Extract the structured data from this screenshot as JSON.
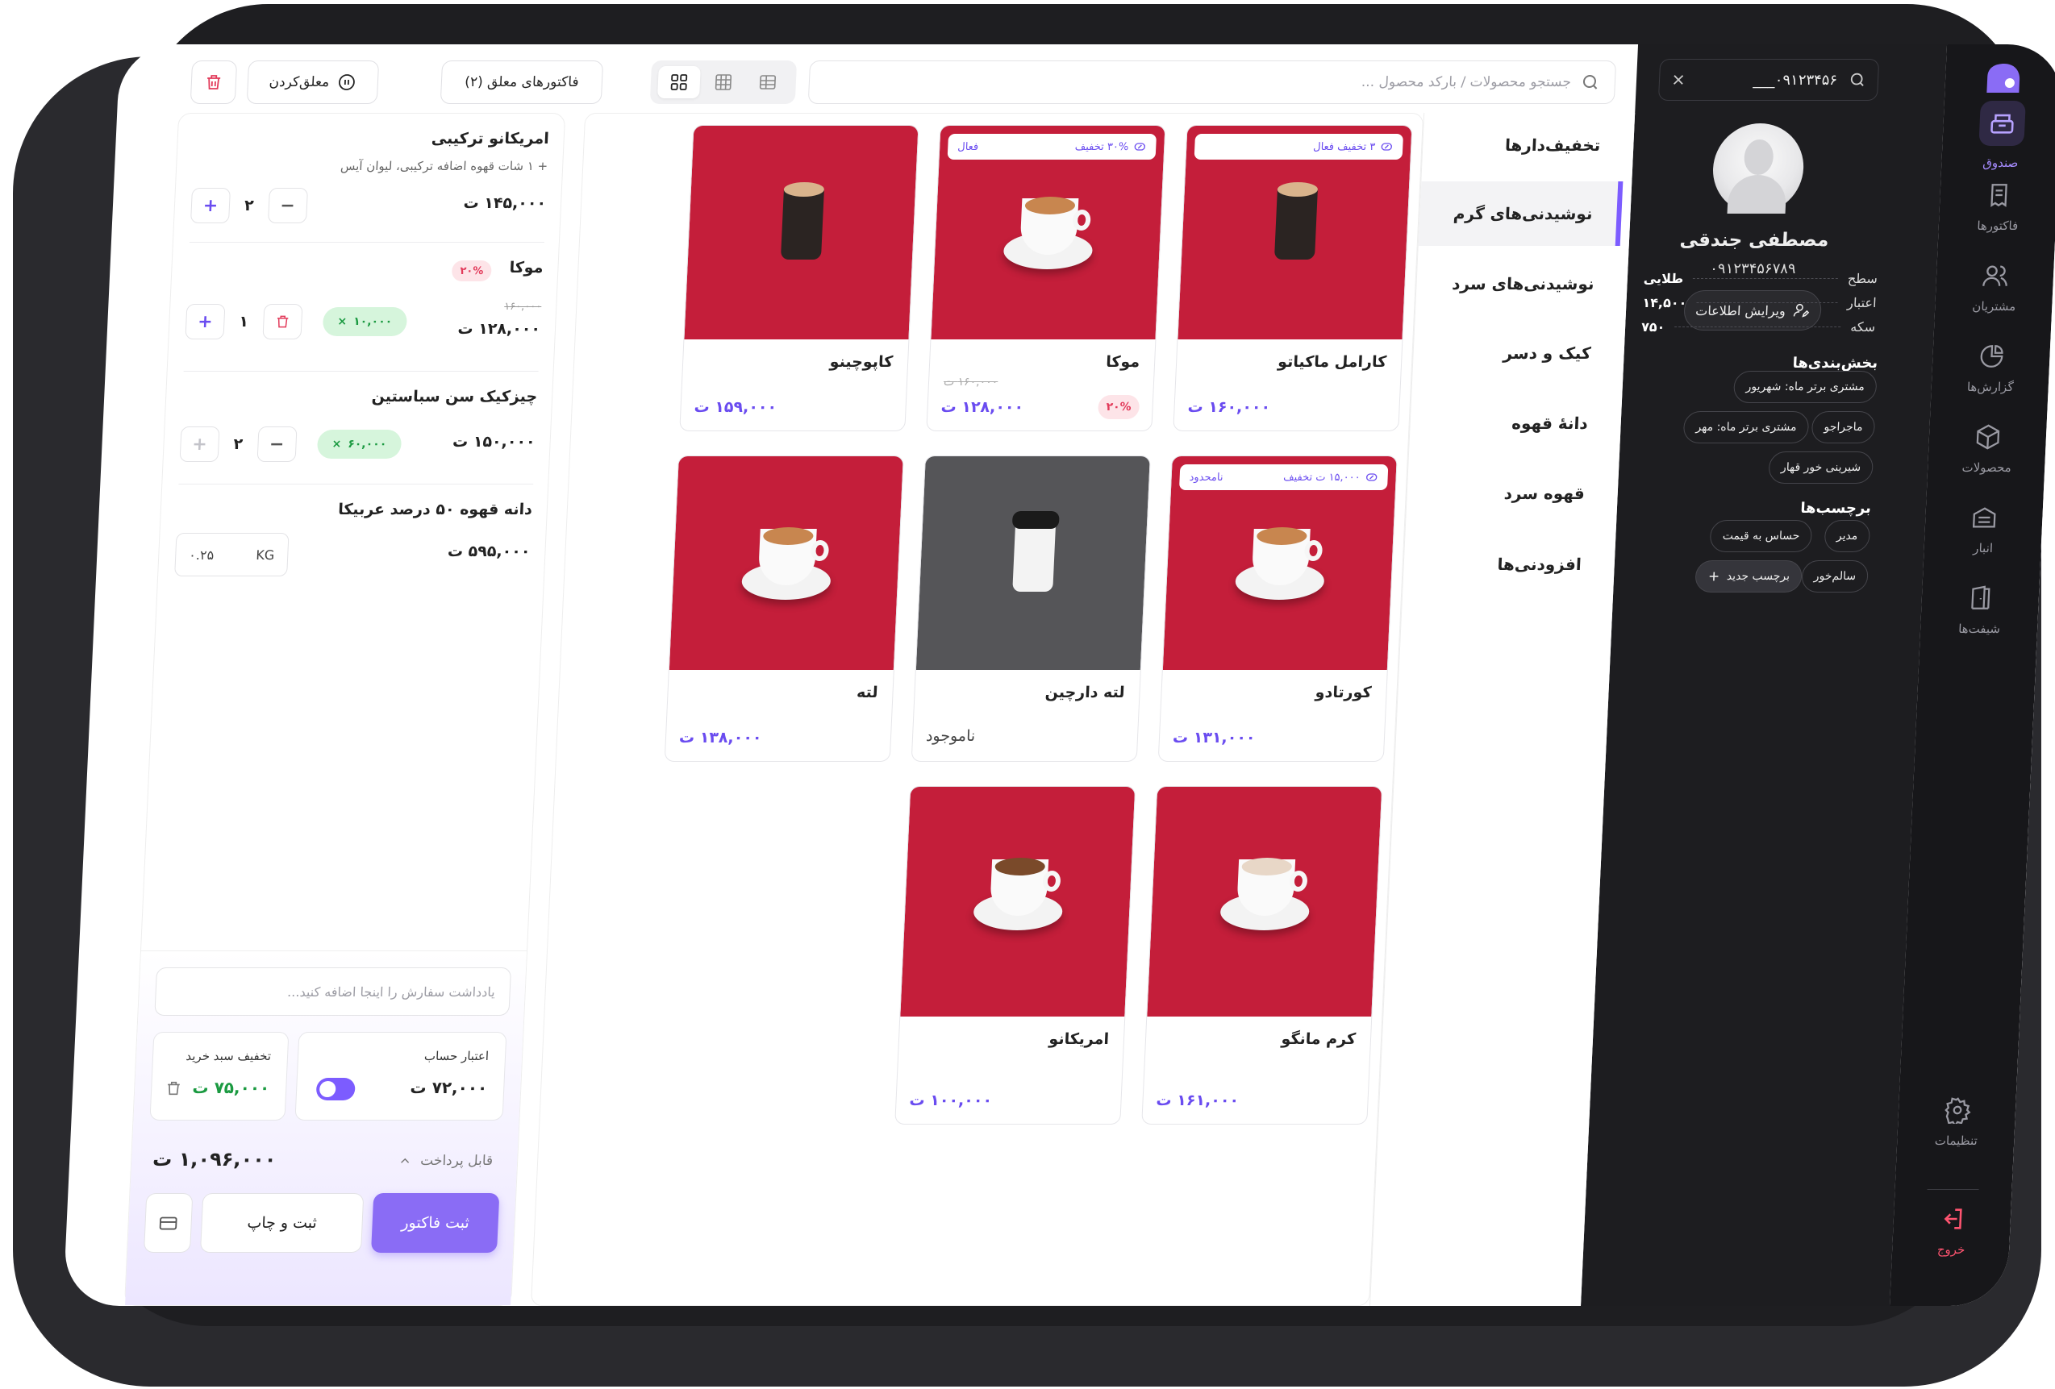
{
  "nav": {
    "cashier": "صندوق",
    "invoices": "فاکتورها",
    "customers": "مشتریان",
    "reports": "گزارش‌ها",
    "products": "محصولات",
    "warehouse": "انبار",
    "shifts": "شیفت‌ها",
    "settings": "تنظیمات",
    "logout": "خروج"
  },
  "customer": {
    "search_value": "۰۹۱۲۳۴۵۶___",
    "name": "مصطفی جندقی",
    "phone": "۰۹۱۲۳۴۵۶۷۸۹",
    "edit_label": "ویرایش اطلاعات",
    "stats": [
      {
        "label": "سطح",
        "value": "طلایی"
      },
      {
        "label": "اعتبار",
        "value": "۱۴,۵۰۰"
      },
      {
        "label": "سکه",
        "value": "۷۵۰"
      }
    ],
    "segments_title": "بخش‌بندی‌ها",
    "segments": [
      "مشتری برتر ماه: شهریور",
      "ماجراجو",
      "مشتری برتر ماه: مهر",
      "شیرینی خور قهار"
    ],
    "tags_title": "برچسب‌ها",
    "tags": [
      "مدیر",
      "حساس به قیمت",
      "سالم‌خور"
    ],
    "new_tag_label": "برچسب جدید"
  },
  "categories": [
    "تخفیف‌دارها",
    "نوشیدنی‌های گرم",
    "نوشیدنی‌های سرد",
    "کیک و دسر",
    "دانهٔ قهوه",
    "قهوه سرد",
    "افزودنی‌ها"
  ],
  "search": {
    "placeholder": "جستجو محصولات / بارکد محصول ..."
  },
  "toolbar": {
    "held_invoices": "فاکتورهای معلق (۲)",
    "suspend": "معلق‌کردن"
  },
  "products": [
    {
      "name": "کارامل ماکیاتو",
      "price": "۱۶۰,۰۰۰ ت",
      "badge_text": "۳ تخفیف فعال",
      "badge_status": ""
    },
    {
      "name": "موکا",
      "price": "۱۲۸,۰۰۰ ت",
      "old_price": "۱۶۰,۰۰۰ ت",
      "percent": "۲۰%",
      "badge_text": "۳۰% تخفیف",
      "badge_status": "فعال"
    },
    {
      "name": "کاپوچینو",
      "price": "۱۵۹,۰۰۰ ت"
    },
    {
      "name": "کورتادو",
      "price": "۱۳۱,۰۰۰ ت",
      "badge_text": "۱۵,۰۰۰ ت تخفیف",
      "badge_status": "نامحدود"
    },
    {
      "name": "لته دارچین",
      "status": "ناموجود"
    },
    {
      "name": "لته",
      "price": "۱۳۸,۰۰۰ ت"
    },
    {
      "name": "کرم مانگو",
      "price": "۱۶۱,۰۰۰ ت"
    },
    {
      "name": "امریکانو",
      "price": "۱۰۰,۰۰۰ ت"
    }
  ],
  "cart": {
    "items": [
      {
        "name": "امریکانو ترکیبی",
        "note": "+ ۱ شات قهوه اضافه ترکیبی، لیوان آیس",
        "price": "۱۴۵,۰۰۰ ت",
        "qty": "۲"
      },
      {
        "name": "موکا",
        "percent": "۲۰%",
        "old_price": "۱۶۰,۰۰۰",
        "price": "۱۲۸,۰۰۰ ت",
        "qty": "۱",
        "discount": "۱۰,۰۰۰"
      },
      {
        "name": "چیزکیک سن سباستین",
        "price": "۱۵۰,۰۰۰ ت",
        "qty": "۲",
        "discount": "۶۰,۰۰۰"
      },
      {
        "name": "دانه قهوه ۵۰ درصد عربیکا",
        "price": "۵۹۵,۰۰۰ ت",
        "weight": "۰.۲۵",
        "weight_unit": "KG"
      }
    ],
    "note_placeholder": "یادداشت سفارش را اینجا اضافه کنید...",
    "credit_label": "اعتبار حساب",
    "credit_value": "۷۲,۰۰۰ ت",
    "basket_discount_label": "تخفیف سبد خرید",
    "basket_discount_value": "۷۵,۰۰۰ ت",
    "payable_label": "قابل پرداخت",
    "payable_value": "۱,۰۹۶,۰۰۰ ت",
    "submit_label": "ثبت فاکتور",
    "print_label": "ثبت و چاپ"
  },
  "colors": {
    "accent": "#8a6cf5",
    "danger": "#e23a5a",
    "success": "#1b9a41",
    "product_bg": "#c41e3a",
    "nav_bg": "#17171a"
  }
}
